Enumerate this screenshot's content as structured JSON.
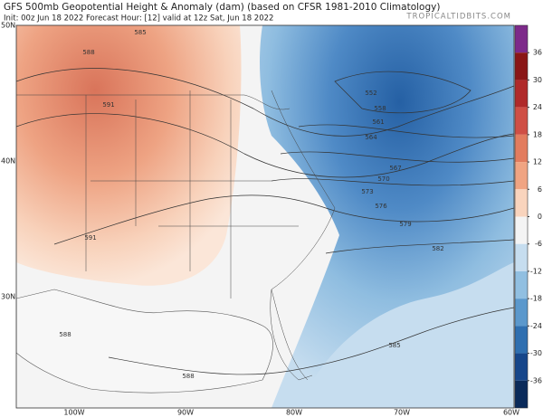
{
  "header": {
    "title": "GFS 500mb Geopotential Height & Anomaly (dam) (based on CFSR 1981-2010 Climatology)",
    "subtitle": "Init: 00z Jun 18 2022   Forecast Hour: [12]   valid at 12z Sat, Jun 18 2022",
    "credit": "TROPICALTIDBITS.COM"
  },
  "map": {
    "lat_labels": [
      "50N",
      "40N",
      "30N"
    ],
    "lon_labels": [
      "100W",
      "90W",
      "80W",
      "70W",
      "60W"
    ],
    "contour_labels": [
      "585",
      "588",
      "591",
      "591",
      "588",
      "588",
      "585",
      "552",
      "558",
      "561",
      "564",
      "567",
      "570",
      "573",
      "576",
      "579",
      "582"
    ]
  },
  "colorbar": {
    "ticks": [
      36,
      30,
      24,
      18,
      12,
      6,
      0,
      -6,
      -12,
      -18,
      -24,
      -30,
      -36
    ],
    "colors": [
      "#7d2a8a",
      "#8a1616",
      "#b02a2a",
      "#cf4f45",
      "#e27c5e",
      "#f0a482",
      "#f9d4bd",
      "#f4f4f4",
      "#c6ddef",
      "#91bfe1",
      "#5b98cc",
      "#2f6fb0",
      "#16468a",
      "#0a2a5a"
    ]
  }
}
